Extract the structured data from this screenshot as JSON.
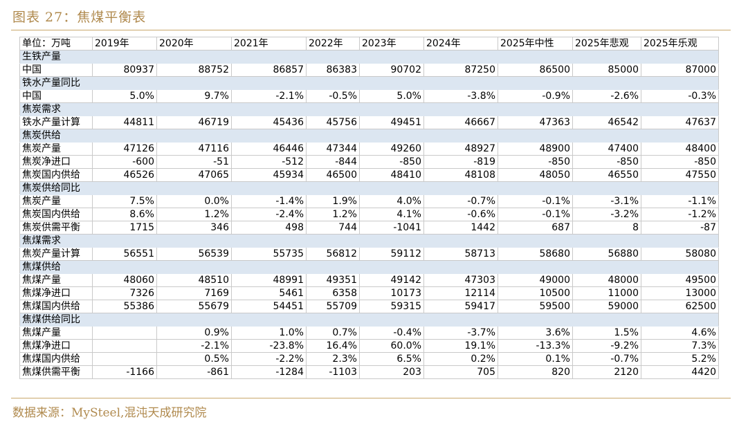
{
  "caption": "图表 27：焦煤平衡表",
  "source": "数据来源：MySteel,混沌天成研究院",
  "table": {
    "headers": [
      "单位：万吨",
      "2019年",
      "2020年",
      "2021年",
      "2022年",
      "2023年",
      "2024年",
      "2025年中性",
      "2025年悲观",
      "2025年乐观"
    ],
    "rows": [
      {
        "section": "生铁产量"
      },
      {
        "label": "中国",
        "values": [
          "80937",
          "88752",
          "86857",
          "86383",
          "90702",
          "87250",
          "86500",
          "85000",
          "87000"
        ]
      },
      {
        "section": "铁水产量同比"
      },
      {
        "label": "中国",
        "values": [
          "5.0%",
          "9.7%",
          "-2.1%",
          "-0.5%",
          "5.0%",
          "-3.8%",
          "-0.9%",
          "-2.6%",
          "-0.3%"
        ]
      },
      {
        "section": "焦炭需求"
      },
      {
        "label": "铁水产量计算",
        "values": [
          "44811",
          "46719",
          "45436",
          "45756",
          "49451",
          "46667",
          "47363",
          "46542",
          "47637"
        ]
      },
      {
        "section": "焦炭供给"
      },
      {
        "label": "焦炭产量",
        "values": [
          "47126",
          "47116",
          "46446",
          "47344",
          "49260",
          "48927",
          "48900",
          "47400",
          "48400"
        ]
      },
      {
        "label": "焦炭净进口",
        "values": [
          "-600",
          "-51",
          "-512",
          "-844",
          "-850",
          "-819",
          "-850",
          "-850",
          "-850"
        ]
      },
      {
        "label": "焦炭国内供给",
        "values": [
          "46526",
          "47065",
          "45934",
          "46500",
          "48410",
          "48108",
          "48050",
          "46550",
          "47550"
        ]
      },
      {
        "section": "焦炭供给同比"
      },
      {
        "label": "焦炭产量",
        "values": [
          "7.5%",
          "0.0%",
          "-1.4%",
          "1.9%",
          "4.0%",
          "-0.7%",
          "-0.1%",
          "-3.1%",
          "-1.1%"
        ]
      },
      {
        "label": "焦炭国内供给",
        "values": [
          "8.6%",
          "1.2%",
          "-2.4%",
          "1.2%",
          "4.1%",
          "-0.6%",
          "-0.1%",
          "-3.2%",
          "-1.2%"
        ]
      },
      {
        "label": "焦炭供需平衡",
        "values": [
          "1715",
          "346",
          "498",
          "744",
          "-1041",
          "1442",
          "687",
          "8",
          "-87"
        ]
      },
      {
        "section": "焦煤需求"
      },
      {
        "label": "焦炭产量计算",
        "values": [
          "56551",
          "56539",
          "55735",
          "56812",
          "59112",
          "58713",
          "58680",
          "56880",
          "58080"
        ]
      },
      {
        "section": "焦煤供给"
      },
      {
        "label": "焦煤产量",
        "values": [
          "48060",
          "48510",
          "48991",
          "49351",
          "49142",
          "47303",
          "49000",
          "48000",
          "49500"
        ]
      },
      {
        "label": "焦煤净进口",
        "values": [
          "7326",
          "7169",
          "5461",
          "6358",
          "10173",
          "12114",
          "10500",
          "11000",
          "13000"
        ]
      },
      {
        "label": "焦煤国内供给",
        "values": [
          "55386",
          "55679",
          "54451",
          "55709",
          "59315",
          "59417",
          "59500",
          "59000",
          "62500"
        ]
      },
      {
        "section": "焦煤供给同比"
      },
      {
        "label": "焦煤产量",
        "values": [
          "",
          "0.9%",
          "1.0%",
          "0.7%",
          "-0.4%",
          "-3.7%",
          "3.6%",
          "1.5%",
          "4.6%"
        ]
      },
      {
        "label": "焦煤净进口",
        "values": [
          "",
          "-2.1%",
          "-23.8%",
          "16.4%",
          "60.0%",
          "19.1%",
          "-13.3%",
          "-9.2%",
          "7.3%"
        ]
      },
      {
        "label": "焦煤国内供给",
        "values": [
          "",
          "0.5%",
          "-2.2%",
          "2.3%",
          "6.5%",
          "0.2%",
          "0.1%",
          "-0.7%",
          "5.2%"
        ]
      },
      {
        "label": "焦煤供需平衡",
        "values": [
          "-1166",
          "-861",
          "-1284",
          "-1103",
          "203",
          "705",
          "820",
          "2120",
          "4420"
        ]
      }
    ]
  }
}
